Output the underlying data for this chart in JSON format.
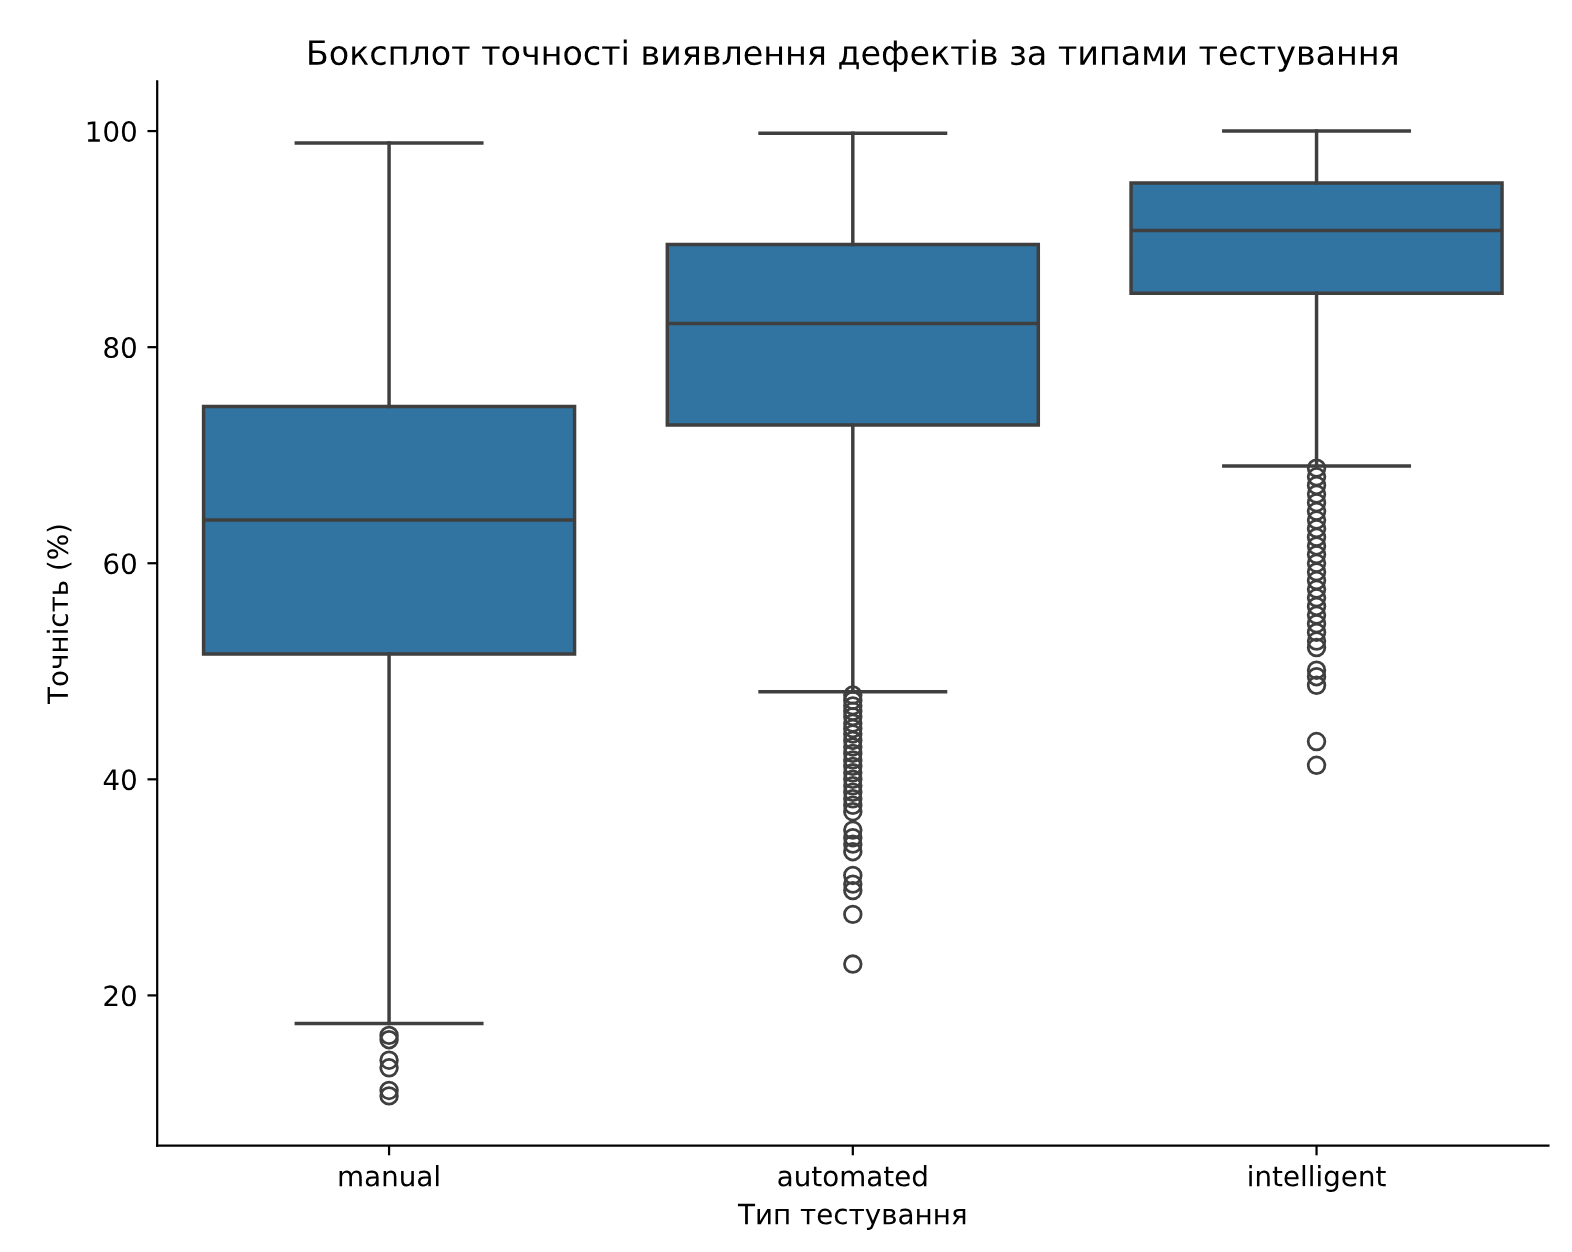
{
  "chart_data": {
    "type": "box",
    "title": "Боксплот точності виявлення дефектів за типами тестування",
    "xlabel": "Тип тестування",
    "ylabel": "Точність (%)",
    "categories": [
      "manual",
      "automated",
      "intelligent"
    ],
    "color": "#3274a1",
    "boxes": [
      {
        "low": 17.4,
        "q1": 51.6,
        "median": 64.0,
        "q3": 74.5,
        "high": 98.9,
        "outliers": [
          16.3,
          15.9,
          14.0,
          13.3,
          11.2,
          10.7
        ]
      },
      {
        "low": 48.1,
        "q1": 72.8,
        "median": 82.2,
        "q3": 89.5,
        "high": 99.8,
        "outliers": [
          47.8,
          47.3,
          46.8,
          46.3,
          45.8,
          45.2,
          44.7,
          44.2,
          43.6,
          43.0,
          42.4,
          41.8,
          41.2,
          40.6,
          40.0,
          39.4,
          38.8,
          38.2,
          37.6,
          37.0,
          35.3,
          34.6,
          34.0,
          33.3,
          31.1,
          30.3,
          29.7,
          27.5,
          22.9
        ]
      },
      {
        "low": 69.0,
        "q1": 85.0,
        "median": 90.8,
        "q3": 95.2,
        "high": 100.0,
        "outliers": [
          68.8,
          68.0,
          67.2,
          66.4,
          65.6,
          64.8,
          64.0,
          63.2,
          62.4,
          61.6,
          60.8,
          60.0,
          59.2,
          58.4,
          57.6,
          56.8,
          56.0,
          55.2,
          54.4,
          53.6,
          52.8,
          52.2,
          50.1,
          49.5,
          48.7,
          43.5,
          41.3
        ]
      }
    ],
    "ylim": [
      6.1,
      104.6
    ],
    "yticks": [
      20,
      40,
      60,
      80,
      100
    ],
    "grid": false
  }
}
